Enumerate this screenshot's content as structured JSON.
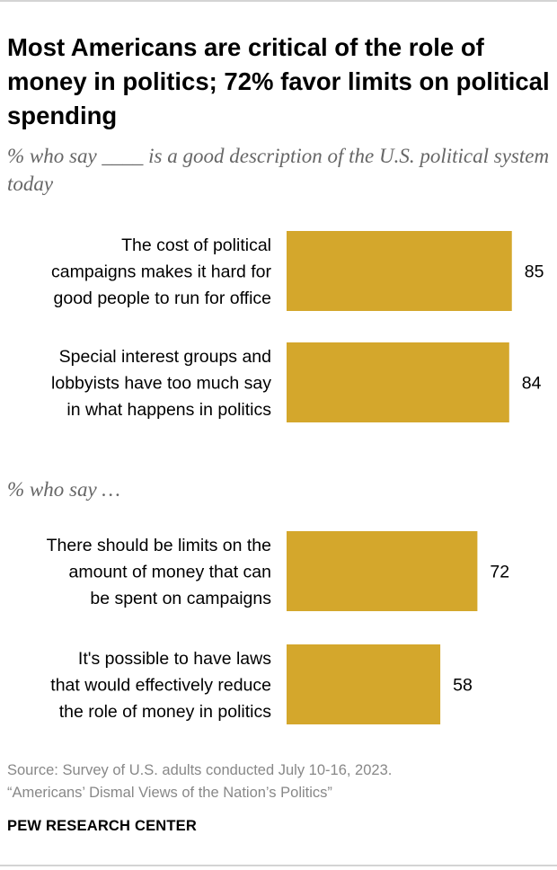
{
  "title": "Most Americans are critical of the role of money in politics; 72% favor limits on political spending",
  "subtitle_1": "% who say ____ is a good description of the U.S. political system today",
  "subtitle_2": "% who say …",
  "source_line_1": "Source: Survey of U.S. adults conducted July 10-16, 2023.",
  "source_line_2": "“Americans’ Dismal Views of the Nation’s Politics”",
  "credit": "PEW RESEARCH CENTER",
  "colors": {
    "bar": "#d4a72c",
    "text": "#000000",
    "subtitle": "#666666",
    "source": "#888888",
    "rule": "#d4d4d4"
  },
  "chart_data": [
    {
      "type": "bar",
      "orientation": "horizontal",
      "title": "% who say ____ is a good description of the U.S. political system today",
      "categories": [
        [
          "The cost of political",
          "campaigns makes it hard for",
          "good people to run for office"
        ],
        [
          "Special interest groups and",
          "lobbyists have too much say",
          "in what happens in politics"
        ]
      ],
      "values": [
        85,
        84
      ],
      "xlim": [
        0,
        100
      ],
      "grid": false,
      "legend": "none"
    },
    {
      "type": "bar",
      "orientation": "horizontal",
      "title": "% who say …",
      "categories": [
        [
          "There should be limits on the",
          "amount of money that can",
          "be spent on campaigns"
        ],
        [
          "It's possible to have laws",
          "that would effectively reduce",
          "the role of money in politics"
        ]
      ],
      "values": [
        72,
        58
      ],
      "xlim": [
        0,
        100
      ],
      "grid": false,
      "legend": "none"
    }
  ]
}
